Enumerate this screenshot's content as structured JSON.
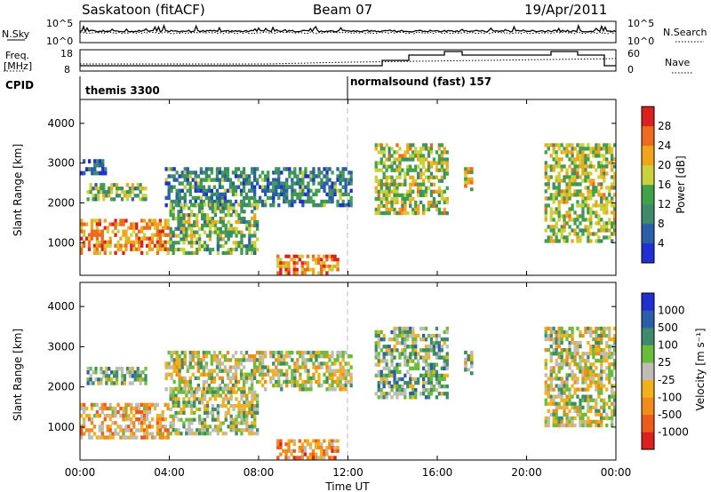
{
  "header": {
    "station": "Saskatoon (fitACF)",
    "beam": "Beam 07",
    "date": "19/Apr/2011"
  },
  "top_panels": {
    "nsky_label": "N.Sky",
    "nsky_ticks": [
      "10^5",
      "10^0"
    ],
    "nsearch_label": "N.Search",
    "nsearch_ticks": [
      "10^5",
      "10^0"
    ],
    "freq_label_1": "Freq.",
    "freq_label_2": "[MHz]",
    "freq_ticks": [
      "18",
      "8"
    ],
    "nave_label": "Nave",
    "nave_ticks": [
      "60",
      "0"
    ],
    "cpid_label": "CPID",
    "cpid_segments": [
      {
        "label": "themis 3300",
        "start_hour": 0
      },
      {
        "label": "normalsound (fast) 157",
        "start_hour": 12
      }
    ]
  },
  "colors": {
    "power": [
      "#1f2fd0",
      "#2a5ea8",
      "#3e8a6a",
      "#41a04a",
      "#c9d23a",
      "#f0a51c",
      "#ee6a20",
      "#dc2020"
    ],
    "velocity": [
      "#dc2020",
      "#ee5a1c",
      "#f08c1c",
      "#f2b01c",
      "#bdbdb5",
      "#6abd3c",
      "#3e8a6a",
      "#2a5ea8",
      "#1f2fd0"
    ]
  },
  "chart_data": [
    {
      "type": "heatmap",
      "title": "",
      "xlabel": "",
      "ylabel": "Slant Range [km]",
      "x_range_hours": [
        0,
        24
      ],
      "ylim": [
        180,
        4600
      ],
      "yticks": [
        "1000",
        "2000",
        "3000",
        "4000"
      ],
      "colorbar": {
        "label": "Power [dB]",
        "ticks": [
          "4",
          "8",
          "12",
          "16",
          "20",
          "24",
          "28"
        ],
        "range": [
          0,
          32
        ]
      },
      "regions": [
        {
          "name": "near-range echoes 00-04 UT",
          "x": [
            0.0,
            4.0
          ],
          "y": [
            700,
            1600
          ],
          "level": 0.75
        },
        {
          "name": "band 00-03 UT",
          "x": [
            0.3,
            3.0
          ],
          "y": [
            2050,
            2500
          ],
          "level": 0.45
        },
        {
          "name": "scatter 00-01 UT",
          "x": [
            0.0,
            1.2
          ],
          "y": [
            2700,
            3100
          ],
          "level": 0.15
        },
        {
          "name": "arc 04-12 UT",
          "x": [
            3.8,
            12.2
          ],
          "y": [
            1900,
            2900
          ],
          "level": 0.3
        },
        {
          "name": "echoes 04-08 UT",
          "x": [
            4.0,
            8.0
          ],
          "y": [
            700,
            2000
          ],
          "level": 0.45
        },
        {
          "name": "low range 09-12 UT",
          "x": [
            8.8,
            11.6
          ],
          "y": [
            200,
            700
          ],
          "level": 0.75
        },
        {
          "name": "echoes 13-16.5 UT",
          "x": [
            13.2,
            16.5
          ],
          "y": [
            1700,
            3500
          ],
          "level": 0.55
        },
        {
          "name": "echoes 17.2-17.6 UT",
          "x": [
            17.2,
            17.6
          ],
          "y": [
            2300,
            2900
          ],
          "level": 0.65
        },
        {
          "name": "echoes 20.8-24 UT",
          "x": [
            20.8,
            24.0
          ],
          "y": [
            1000,
            3500
          ],
          "level": 0.55
        }
      ]
    },
    {
      "type": "heatmap",
      "title": "",
      "xlabel": "Time UT",
      "ylabel": "Slant Range [km]",
      "x_range_hours": [
        0,
        24
      ],
      "ylim": [
        180,
        4600
      ],
      "yticks": [
        "1000",
        "2000",
        "3000",
        "4000"
      ],
      "xticks": [
        "00:00",
        "04:00",
        "08:00",
        "12:00",
        "16:00",
        "20:00",
        "00:00"
      ],
      "colorbar": {
        "label": "Velocity [m s⁻¹]",
        "ticks": [
          "-1000",
          "-500",
          "-100",
          "-25",
          "25",
          "100",
          "500",
          "1000"
        ],
        "range": [
          -1500,
          1500
        ]
      },
      "regions": [
        {
          "name": "near-range 00-04 UT",
          "x": [
            0.0,
            4.0
          ],
          "y": [
            700,
            1600
          ],
          "level": 0.35
        },
        {
          "name": "band 00-03 UT",
          "x": [
            0.3,
            3.0
          ],
          "y": [
            2050,
            2500
          ],
          "level": 0.6
        },
        {
          "name": "arc 04-12 UT",
          "x": [
            3.8,
            12.2
          ],
          "y": [
            1900,
            2900
          ],
          "level": 0.5
        },
        {
          "name": "echoes 04-08 UT",
          "x": [
            4.0,
            8.0
          ],
          "y": [
            800,
            2000
          ],
          "level": 0.55
        },
        {
          "name": "low range 09-12 UT",
          "x": [
            8.8,
            11.6
          ],
          "y": [
            200,
            700
          ],
          "level": 0.3
        },
        {
          "name": "echoes 13-16.5 UT",
          "x": [
            13.2,
            16.5
          ],
          "y": [
            1700,
            3500
          ],
          "level": 0.62
        },
        {
          "name": "echoes 17.2-17.6 UT",
          "x": [
            17.2,
            17.6
          ],
          "y": [
            2300,
            2900
          ],
          "level": 0.55
        },
        {
          "name": "echoes 20.8-24 UT",
          "x": [
            20.8,
            24.0
          ],
          "y": [
            1000,
            3500
          ],
          "level": 0.5
        }
      ]
    }
  ]
}
